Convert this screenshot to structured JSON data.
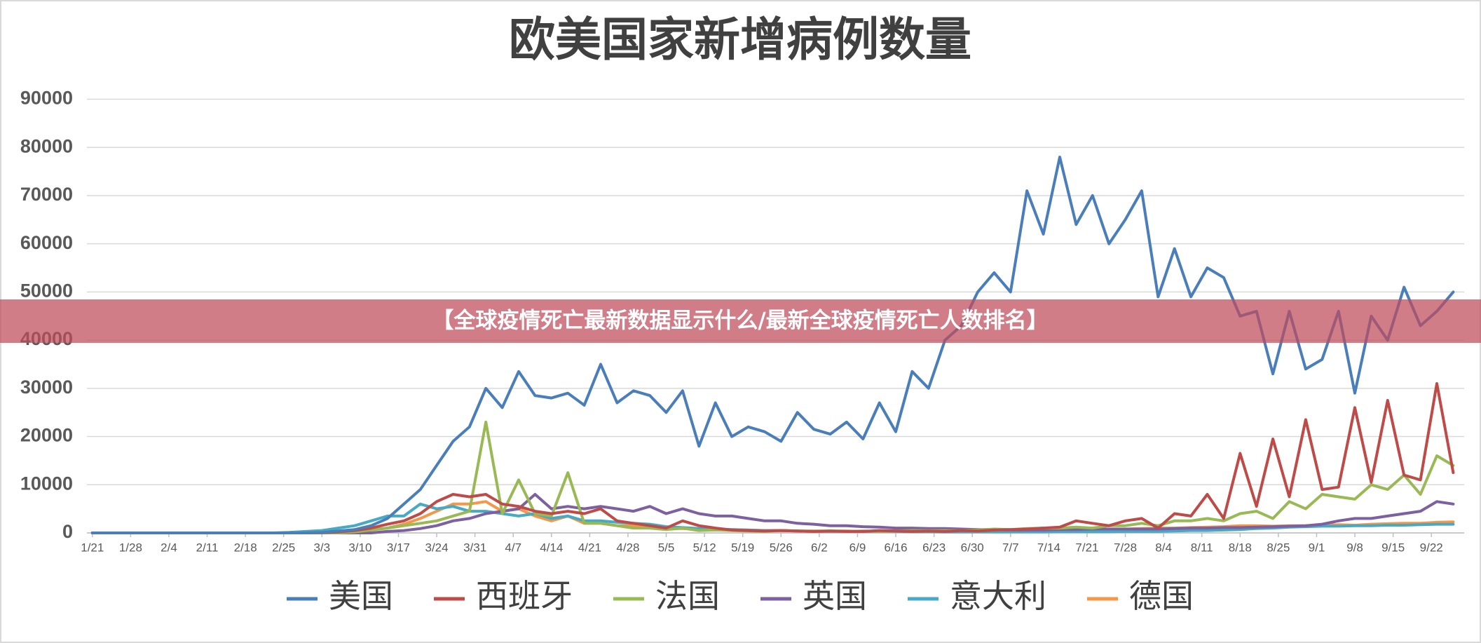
{
  "chart_data": {
    "type": "line",
    "title": "欧美国家新增病例数量",
    "banner": "【全球疫情死亡最新数据显示什么/最新全球疫情死亡人数排名】",
    "x": [
      0,
      3,
      6,
      9,
      12,
      15,
      18,
      21,
      24,
      27,
      30,
      33,
      36,
      39,
      42,
      45,
      48,
      51,
      54,
      57,
      60,
      63,
      66,
      69,
      72,
      75,
      78,
      81,
      84,
      87,
      90,
      93,
      96,
      99,
      102,
      105,
      108,
      111,
      114,
      117,
      120,
      123,
      126,
      129,
      132,
      135,
      138,
      141,
      144,
      147,
      150,
      153,
      156,
      159,
      162,
      165,
      168,
      171,
      174,
      177,
      180,
      183,
      186,
      189,
      192,
      195,
      198,
      201,
      204,
      207,
      210,
      213,
      216,
      219,
      222,
      225,
      228,
      231,
      234,
      237,
      240,
      243,
      246,
      249
    ],
    "xlim": [
      -1,
      251
    ],
    "xticks": [
      {
        "value": 0,
        "label": "1/21"
      },
      {
        "value": 7,
        "label": "1/28"
      },
      {
        "value": 14,
        "label": "2/4"
      },
      {
        "value": 21,
        "label": "2/11"
      },
      {
        "value": 28,
        "label": "2/18"
      },
      {
        "value": 35,
        "label": "2/25"
      },
      {
        "value": 42,
        "label": "3/3"
      },
      {
        "value": 49,
        "label": "3/10"
      },
      {
        "value": 56,
        "label": "3/17"
      },
      {
        "value": 63,
        "label": "3/24"
      },
      {
        "value": 70,
        "label": "3/31"
      },
      {
        "value": 77,
        "label": "4/7"
      },
      {
        "value": 84,
        "label": "4/14"
      },
      {
        "value": 91,
        "label": "4/21"
      },
      {
        "value": 98,
        "label": "4/28"
      },
      {
        "value": 105,
        "label": "5/5"
      },
      {
        "value": 112,
        "label": "5/12"
      },
      {
        "value": 119,
        "label": "5/19"
      },
      {
        "value": 126,
        "label": "5/26"
      },
      {
        "value": 133,
        "label": "6/2"
      },
      {
        "value": 140,
        "label": "6/9"
      },
      {
        "value": 147,
        "label": "6/16"
      },
      {
        "value": 154,
        "label": "6/23"
      },
      {
        "value": 161,
        "label": "6/30"
      },
      {
        "value": 168,
        "label": "7/7"
      },
      {
        "value": 175,
        "label": "7/14"
      },
      {
        "value": 182,
        "label": "7/21"
      },
      {
        "value": 189,
        "label": "7/28"
      },
      {
        "value": 196,
        "label": "8/4"
      },
      {
        "value": 203,
        "label": "8/11"
      },
      {
        "value": 210,
        "label": "8/18"
      },
      {
        "value": 217,
        "label": "8/25"
      },
      {
        "value": 224,
        "label": "9/1"
      },
      {
        "value": 231,
        "label": "9/8"
      },
      {
        "value": 238,
        "label": "9/15"
      },
      {
        "value": 245,
        "label": "9/22"
      }
    ],
    "ylim": [
      0,
      90000
    ],
    "yticks": [
      0,
      10000,
      20000,
      30000,
      40000,
      50000,
      60000,
      70000,
      80000,
      90000
    ],
    "grid": true,
    "legend": "bottom",
    "series": [
      {
        "name": "美国",
        "color": "#4a7ebb",
        "values": [
          0,
          0,
          0,
          0,
          0,
          0,
          0,
          0,
          0,
          0,
          0,
          0,
          0,
          20,
          100,
          400,
          700,
          1500,
          3000,
          6000,
          9000,
          14000,
          19000,
          22000,
          30000,
          26000,
          33500,
          28500,
          28000,
          29000,
          26500,
          35000,
          27000,
          29500,
          28500,
          25000,
          29500,
          18000,
          27000,
          20000,
          22000,
          21000,
          19000,
          25000,
          21500,
          20500,
          23000,
          19500,
          27000,
          21000,
          33500,
          30000,
          40000,
          43000,
          50000,
          54000,
          50000,
          71000,
          62000,
          78000,
          64000,
          70000,
          60000,
          65000,
          71000,
          49000,
          59000,
          49000,
          55000,
          53000,
          45000,
          46000,
          33000,
          46000,
          34000,
          36000,
          46000,
          29000,
          45000,
          40000,
          51000,
          43000,
          46000,
          50000
        ]
      },
      {
        "name": "西班牙",
        "color": "#be4b48",
        "values": [
          0,
          0,
          0,
          0,
          0,
          0,
          0,
          0,
          0,
          0,
          0,
          0,
          0,
          0,
          50,
          200,
          500,
          1000,
          1800,
          2500,
          4000,
          6500,
          8000,
          7500,
          8000,
          6000,
          5500,
          4500,
          4000,
          4500,
          4000,
          5000,
          2500,
          2000,
          1500,
          1000,
          2500,
          1500,
          1000,
          600,
          500,
          400,
          500,
          400,
          300,
          400,
          300,
          300,
          500,
          400,
          300,
          400,
          300,
          500,
          400,
          600,
          700,
          800,
          1000,
          1200,
          2500,
          2000,
          1500,
          2500,
          3000,
          1000,
          4000,
          3500,
          8000,
          3000,
          16500,
          5500,
          19500,
          7500,
          23500,
          9000,
          9500,
          26000,
          10500,
          27500,
          12000,
          11000,
          31000,
          12500
        ]
      },
      {
        "name": "法国",
        "color": "#98b954",
        "values": [
          0,
          0,
          0,
          0,
          0,
          0,
          0,
          0,
          0,
          0,
          0,
          0,
          0,
          0,
          0,
          0,
          200,
          600,
          1000,
          1500,
          2000,
          2500,
          3500,
          4500,
          23000,
          4000,
          11000,
          4000,
          3500,
          12500,
          2000,
          2000,
          1500,
          1000,
          1000,
          700,
          1000,
          500,
          600,
          500,
          400,
          300,
          500,
          400,
          300,
          400,
          300,
          400,
          300,
          400,
          500,
          500,
          500,
          500,
          600,
          800,
          700,
          900,
          1000,
          1000,
          1200,
          1000,
          1500,
          1500,
          2000,
          1500,
          2500,
          2500,
          3000,
          2500,
          4000,
          4500,
          3000,
          6500,
          5000,
          8000,
          7500,
          7000,
          10000,
          9000,
          12000,
          8000,
          16000,
          14000
        ]
      },
      {
        "name": "英国",
        "color": "#7d60a0",
        "values": [
          0,
          0,
          0,
          0,
          0,
          0,
          0,
          0,
          0,
          0,
          0,
          0,
          0,
          0,
          0,
          0,
          0,
          0,
          300,
          500,
          900,
          1500,
          2500,
          3000,
          4000,
          4500,
          5000,
          8000,
          5000,
          5500,
          5000,
          5500,
          5000,
          4500,
          5500,
          4000,
          5000,
          4000,
          3500,
          3500,
          3000,
          2500,
          2500,
          2000,
          1800,
          1500,
          1500,
          1300,
          1200,
          1000,
          1000,
          900,
          900,
          800,
          700,
          700,
          600,
          600,
          600,
          700,
          700,
          800,
          800,
          800,
          800,
          800,
          900,
          1000,
          1000,
          1100,
          1100,
          1200,
          1300,
          1400,
          1500,
          1800,
          2500,
          3000,
          3000,
          3500,
          4000,
          4500,
          6500,
          6000
        ]
      },
      {
        "name": "意大利",
        "color": "#46aac5",
        "values": [
          0,
          0,
          0,
          0,
          0,
          0,
          0,
          0,
          0,
          0,
          0,
          0,
          100,
          300,
          500,
          1000,
          1500,
          2500,
          3500,
          3500,
          6000,
          5000,
          5500,
          4500,
          4500,
          4000,
          3500,
          4000,
          3000,
          3500,
          2500,
          2500,
          2200,
          2000,
          1800,
          1300,
          1100,
          900,
          800,
          700,
          600,
          500,
          500,
          400,
          300,
          300,
          300,
          300,
          300,
          300,
          250,
          250,
          200,
          200,
          200,
          200,
          200,
          200,
          200,
          250,
          250,
          250,
          250,
          300,
          300,
          300,
          400,
          500,
          500,
          600,
          700,
          900,
          1000,
          1200,
          1300,
          1400,
          1400,
          1500,
          1500,
          1600,
          1600,
          1700,
          1800,
          1800
        ]
      },
      {
        "name": "德国",
        "color": "#f79646",
        "values": [
          0,
          0,
          0,
          0,
          0,
          0,
          0,
          0,
          0,
          0,
          0,
          0,
          0,
          0,
          0,
          100,
          300,
          700,
          1000,
          1800,
          3000,
          4500,
          6000,
          6000,
          6500,
          4500,
          5000,
          3500,
          2500,
          3500,
          2000,
          2000,
          1500,
          1500,
          1000,
          900,
          900,
          800,
          700,
          700,
          600,
          500,
          500,
          400,
          400,
          400,
          400,
          300,
          400,
          400,
          600,
          500,
          500,
          400,
          400,
          400,
          400,
          400,
          500,
          500,
          500,
          600,
          700,
          800,
          900,
          1000,
          1000,
          1100,
          1200,
          1300,
          1500,
          1500,
          1400,
          1500,
          1500,
          1600,
          1700,
          1600,
          1800,
          1900,
          2000,
          2000,
          2200,
          2300
        ]
      }
    ]
  }
}
